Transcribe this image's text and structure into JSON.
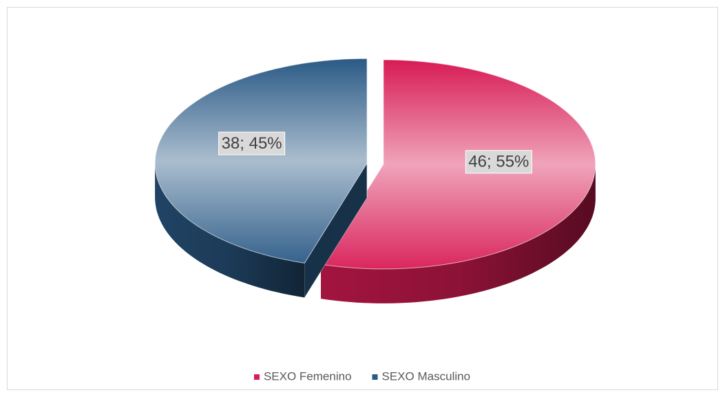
{
  "chart_data": {
    "type": "pie",
    "categories": [
      "SEXO Femenino",
      "SEXO Masculino"
    ],
    "values": [
      46,
      38
    ],
    "value_labels": [
      "46; 55%",
      "38; 45%"
    ],
    "colors": [
      "#d81b55",
      "#2b5a86"
    ],
    "legend": "bottom"
  }
}
